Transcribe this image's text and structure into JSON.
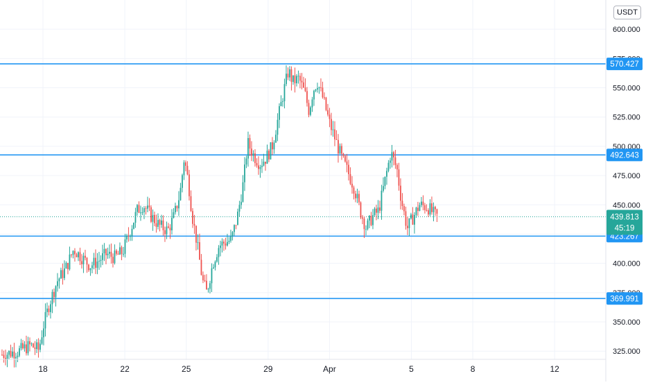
{
  "colors": {
    "up": "#26a69a",
    "down": "#ef5350",
    "level_line": "#2196f3",
    "last_price_badge": "#26a69a",
    "grid": "#f0f3fa",
    "axis_text": "#131722"
  },
  "currency_label": "USDT",
  "chart_data": {
    "type": "candlestick",
    "y_axis": {
      "position": "right",
      "ylim": [
        318,
        625
      ],
      "ticks": [
        325,
        350,
        375,
        400,
        425,
        450,
        475,
        500,
        525,
        550,
        575,
        600
      ],
      "tick_labels": [
        "325.000",
        "350.000",
        "375.000",
        "400.000",
        "425.000",
        "450.000",
        "475.000",
        "500.000",
        "525.000",
        "550.000",
        "575.000",
        "600.000"
      ]
    },
    "x_axis": {
      "labels": [
        {
          "text": "18",
          "day": 18
        },
        {
          "text": "22",
          "day": 22
        },
        {
          "text": "25",
          "day": 25
        },
        {
          "text": "29",
          "day": 29
        },
        {
          "text": "Apr",
          "day": 32
        },
        {
          "text": "5",
          "day": 36
        },
        {
          "text": "8",
          "day": 39
        },
        {
          "text": "12",
          "day": 43
        }
      ],
      "xlim": [
        15.9,
        45.5
      ]
    },
    "grid": true,
    "horizontal_levels": [
      {
        "value": 570.427,
        "label": "570.427"
      },
      {
        "value": 492.643,
        "label": "492.643"
      },
      {
        "value": 423.267,
        "label": "423.267"
      },
      {
        "value": 369.991,
        "label": "369.991"
      }
    ],
    "last_price": {
      "value": 439.813,
      "label": "439.813",
      "countdown": "45:19"
    },
    "price_path": [
      [
        16.0,
        322
      ],
      [
        16.8,
        325
      ],
      [
        17.4,
        330
      ],
      [
        17.8,
        326
      ],
      [
        18.0,
        345
      ],
      [
        18.3,
        365
      ],
      [
        18.7,
        385
      ],
      [
        19.1,
        395
      ],
      [
        19.5,
        412
      ],
      [
        19.9,
        405
      ],
      [
        20.3,
        398
      ],
      [
        20.7,
        402
      ],
      [
        21.1,
        408
      ],
      [
        21.5,
        405
      ],
      [
        21.9,
        410
      ],
      [
        22.2,
        425
      ],
      [
        22.6,
        445
      ],
      [
        22.9,
        450
      ],
      [
        23.3,
        440
      ],
      [
        23.7,
        432
      ],
      [
        24.1,
        428
      ],
      [
        24.4,
        440
      ],
      [
        24.7,
        460
      ],
      [
        24.9,
        490
      ],
      [
        25.1,
        470
      ],
      [
        25.3,
        440
      ],
      [
        25.5,
        420
      ],
      [
        25.8,
        385
      ],
      [
        26.0,
        375
      ],
      [
        26.3,
        400
      ],
      [
        26.6,
        415
      ],
      [
        26.9,
        418
      ],
      [
        27.2,
        420
      ],
      [
        27.5,
        440
      ],
      [
        27.8,
        470
      ],
      [
        28.0,
        503
      ],
      [
        28.3,
        492
      ],
      [
        28.6,
        485
      ],
      [
        28.9,
        490
      ],
      [
        29.2,
        500
      ],
      [
        29.5,
        525
      ],
      [
        29.8,
        550
      ],
      [
        30.0,
        565
      ],
      [
        30.2,
        555
      ],
      [
        30.5,
        558
      ],
      [
        30.8,
        545
      ],
      [
        31.0,
        530
      ],
      [
        31.2,
        548
      ],
      [
        31.4,
        555
      ],
      [
        31.7,
        540
      ],
      [
        32.0,
        520
      ],
      [
        32.3,
        505
      ],
      [
        32.6,
        490
      ],
      [
        32.9,
        478
      ],
      [
        33.2,
        465
      ],
      [
        33.5,
        445
      ],
      [
        33.8,
        430
      ],
      [
        34.1,
        440
      ],
      [
        34.4,
        445
      ],
      [
        34.7,
        470
      ],
      [
        35.0,
        495
      ],
      [
        35.3,
        480
      ],
      [
        35.5,
        455
      ],
      [
        35.8,
        430
      ],
      [
        36.1,
        440
      ],
      [
        36.4,
        450
      ],
      [
        36.8,
        448
      ],
      [
        37.1,
        442
      ],
      [
        37.3,
        439.8
      ]
    ]
  }
}
